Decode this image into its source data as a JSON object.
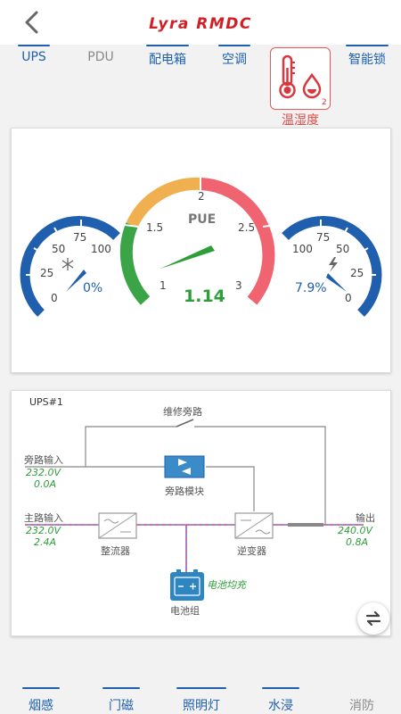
{
  "header": {
    "logo": "Lyra RMDC"
  },
  "tabs": [
    {
      "label": "UPS"
    },
    {
      "label": "PDU"
    },
    {
      "label": "配电箱"
    },
    {
      "label": "空调"
    },
    {
      "label": "温湿度"
    },
    {
      "label": "智能锁"
    }
  ],
  "gauges": {
    "left": {
      "ticks": [
        "0",
        "25",
        "50",
        "75",
        "100"
      ],
      "value": "0%",
      "icon": "snowflake-icon"
    },
    "pue": {
      "title": "PUE",
      "ticks": [
        "1",
        "1.5",
        "2",
        "2.5",
        "3"
      ],
      "value": "1.14"
    },
    "right": {
      "ticks": [
        "100",
        "75",
        "50",
        "25",
        "0"
      ],
      "value": "7.9%",
      "icon": "lightning-icon"
    }
  },
  "ups": {
    "title": "UPS#1",
    "maintenance_bypass": "维修旁路",
    "bypass_input": {
      "label": "旁路输入",
      "voltage": "232.0V",
      "current": "0.0A"
    },
    "bypass_module": "旁路模块",
    "main_input": {
      "label": "主路输入",
      "voltage": "232.0V",
      "current": "2.4A"
    },
    "rectifier": "整流器",
    "inverter": "逆变器",
    "output": {
      "label": "输出",
      "voltage": "240.0V",
      "current": "0.8A"
    },
    "battery": "电池组",
    "battery_status": "电池均充"
  },
  "bottom_tabs": [
    {
      "label": "烟感"
    },
    {
      "label": "门磁"
    },
    {
      "label": "照明灯"
    },
    {
      "label": "水浸"
    },
    {
      "label": "消防"
    }
  ],
  "colors": {
    "accent": "#1f5fae",
    "red": "#e34b4b",
    "green": "#2e9e3a",
    "orange": "#f0b050"
  }
}
